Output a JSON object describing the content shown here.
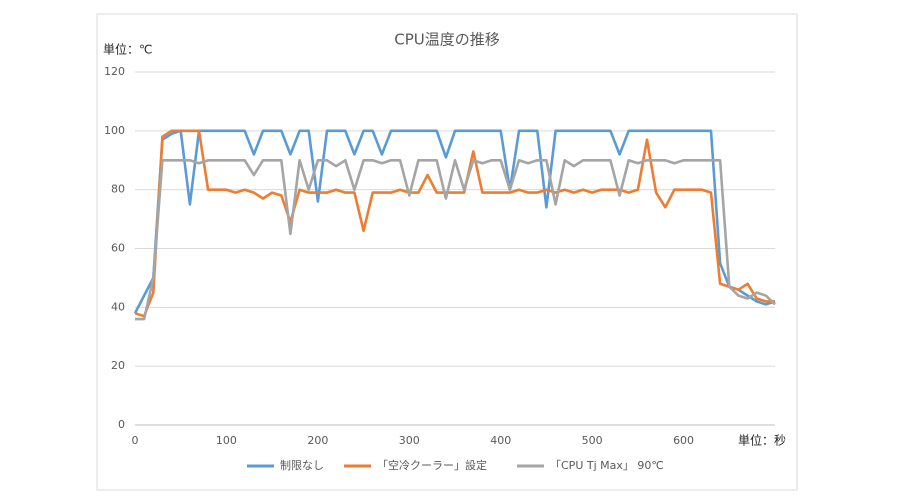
{
  "chart_data": {
    "type": "line",
    "title": "CPU温度の推移",
    "y_unit_label": "単位：℃",
    "x_unit_label": "単位：秒",
    "x": [
      0,
      10,
      20,
      30,
      40,
      50,
      60,
      70,
      80,
      90,
      100,
      110,
      120,
      130,
      140,
      150,
      160,
      170,
      180,
      190,
      200,
      210,
      220,
      230,
      240,
      250,
      260,
      270,
      280,
      290,
      300,
      310,
      320,
      330,
      340,
      350,
      360,
      370,
      380,
      390,
      400,
      410,
      420,
      430,
      440,
      450,
      460,
      470,
      480,
      490,
      500,
      510,
      520,
      530,
      540,
      550,
      560,
      570,
      580,
      590,
      600,
      610,
      620,
      630,
      640,
      650,
      660,
      670,
      680,
      690,
      700
    ],
    "series": [
      {
        "name": "制限なし",
        "color": "#5b9bd5",
        "values": [
          38,
          44,
          50,
          97,
          99,
          100,
          75,
          100,
          100,
          100,
          100,
          100,
          100,
          92,
          100,
          100,
          100,
          92,
          100,
          100,
          76,
          100,
          100,
          100,
          92,
          100,
          100,
          92,
          100,
          100,
          100,
          100,
          100,
          100,
          91,
          100,
          100,
          100,
          100,
          100,
          100,
          80,
          100,
          100,
          100,
          74,
          100,
          100,
          100,
          100,
          100,
          100,
          100,
          92,
          100,
          100,
          100,
          100,
          100,
          100,
          100,
          100,
          100,
          100,
          55,
          47,
          46,
          44,
          42,
          41,
          42
        ]
      },
      {
        "name": "「空冷クーラー」設定",
        "color": "#ed7d31",
        "values": [
          38,
          37,
          45,
          98,
          100,
          100,
          100,
          100,
          80,
          80,
          80,
          79,
          80,
          79,
          77,
          79,
          78,
          69,
          80,
          79,
          79,
          79,
          80,
          79,
          79,
          66,
          79,
          79,
          79,
          80,
          79,
          79,
          85,
          79,
          79,
          79,
          79,
          93,
          79,
          79,
          79,
          79,
          80,
          79,
          79,
          80,
          79,
          80,
          79,
          80,
          79,
          80,
          80,
          80,
          79,
          80,
          97,
          79,
          74,
          80,
          80,
          80,
          80,
          79,
          48,
          47,
          46,
          48,
          43,
          42,
          42
        ]
      },
      {
        "name": "「CPU Tj Max」 90℃",
        "color": "#a5a5a5",
        "values": [
          36,
          36,
          50,
          90,
          90,
          90,
          90,
          89,
          90,
          90,
          90,
          90,
          90,
          85,
          90,
          90,
          90,
          65,
          90,
          80,
          90,
          90,
          88,
          90,
          80,
          90,
          90,
          89,
          90,
          90,
          78,
          90,
          90,
          90,
          77,
          90,
          80,
          90,
          89,
          90,
          90,
          80,
          90,
          89,
          90,
          90,
          75,
          90,
          88,
          90,
          90,
          90,
          90,
          78,
          90,
          89,
          90,
          90,
          90,
          89,
          90,
          90,
          90,
          90,
          90,
          47,
          44,
          43,
          45,
          44,
          41
        ]
      }
    ],
    "xlim": [
      0,
      700
    ],
    "xticks": [
      0,
      100,
      200,
      300,
      400,
      500,
      600
    ],
    "ylim": [
      0,
      120
    ],
    "yticks": [
      0,
      20,
      40,
      60,
      80,
      100,
      120
    ],
    "grid": true,
    "legend": "bottom"
  }
}
